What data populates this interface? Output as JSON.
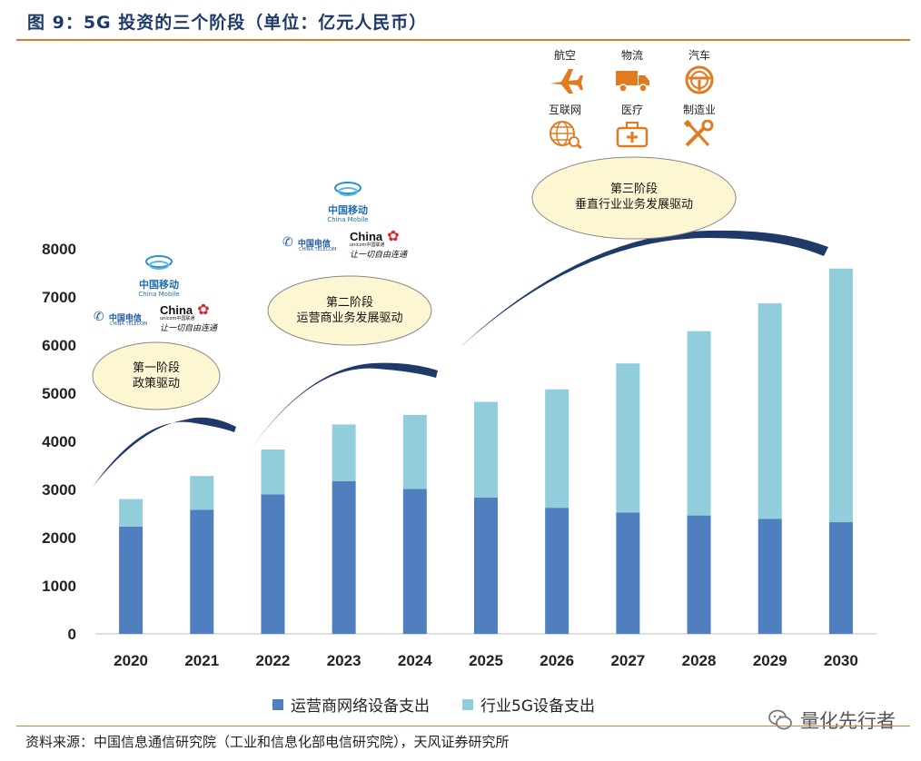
{
  "figure": {
    "title": "图 9：5G 投资的三个阶段（单位：亿元人民币）",
    "source": "资料来源：中国信息通信研究院（工业和信息化部电信研究院），天风证券研究所",
    "watermark": "量化先行者"
  },
  "stages": [
    {
      "label_line1": "第一阶段",
      "label_line2": "政策驱动"
    },
    {
      "label_line1": "第二阶段",
      "label_line2": "运营商业务发展驱动"
    },
    {
      "label_line1": "第三阶段",
      "label_line2": "垂直行业业务发展驱动"
    }
  ],
  "logos": {
    "china_mobile": "中国移动",
    "china_mobile_en": "China Mobile",
    "china_telecom": "中国电信",
    "china_telecom_en": "CHINA TELECOM",
    "china_unicom": "China",
    "china_unicom_sub": "unicom中国联通",
    "china_unicom_slogan": "让一切自由连通"
  },
  "industries": [
    "航空",
    "物流",
    "汽车",
    "互联网",
    "医疗",
    "制造业"
  ],
  "colors": {
    "operator": "#4f7fbf",
    "industry": "#92cddc",
    "curve": "#1f3a68",
    "ellipse_fill": "#fdf6d3",
    "icon": "#e07b20",
    "rule": "#e07b20"
  },
  "chart_data": {
    "type": "bar",
    "stacked": true,
    "categories": [
      "2020",
      "2021",
      "2022",
      "2023",
      "2024",
      "2025",
      "2026",
      "2027",
      "2028",
      "2029",
      "2030"
    ],
    "series": [
      {
        "name": "运营商网络设备支出",
        "values": [
          2230,
          2580,
          2900,
          3170,
          3010,
          2830,
          2620,
          2520,
          2460,
          2390,
          2320
        ]
      },
      {
        "name": "行业5G设备支出",
        "values": [
          570,
          700,
          930,
          1180,
          1540,
          1990,
          2460,
          3100,
          3830,
          4480,
          5270
        ]
      }
    ],
    "ylim": [
      0,
      8000
    ],
    "yticks": [
      0,
      1000,
      2000,
      3000,
      4000,
      5000,
      6000,
      7000,
      8000
    ],
    "ytick_labels": [
      "0",
      "1000",
      "2000",
      "3000",
      "4000",
      "5000",
      "6000",
      "7000",
      "8000"
    ],
    "legend_position": "bottom"
  }
}
